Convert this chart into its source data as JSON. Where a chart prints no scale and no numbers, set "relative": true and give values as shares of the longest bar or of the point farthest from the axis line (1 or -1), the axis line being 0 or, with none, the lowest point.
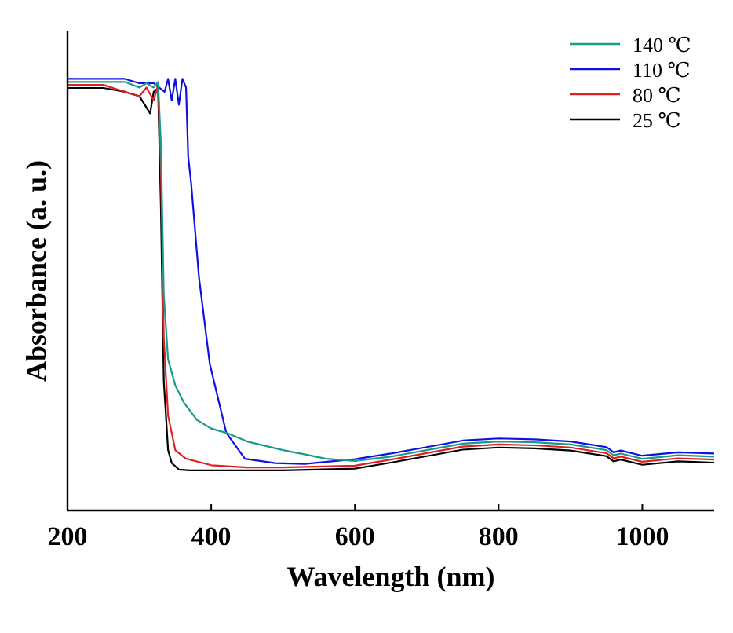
{
  "chart_data": {
    "type": "line",
    "xlabel": "Wavelength (nm)",
    "ylabel": "Absorbance (a. u.)",
    "relative": true,
    "xlim": [
      200,
      1100
    ],
    "xticks": [
      200,
      400,
      600,
      800,
      1000
    ],
    "legend": "top right",
    "line_style": "solid",
    "marker": "none",
    "grid": false,
    "series": [
      {
        "name": "140 ℃",
        "color": "#1a9a8a",
        "x": [
          200,
          250,
          280,
          300,
          310,
          320,
          326,
          330,
          334,
          340,
          350,
          362,
          380,
          400,
          421,
          450,
          500,
          531,
          560,
          600,
          650,
          700,
          750,
          800,
          850,
          900,
          950,
          960,
          970,
          1000,
          1050,
          1100
        ],
        "values": [
          0.993,
          0.993,
          0.993,
          0.98,
          0.99,
          0.98,
          0.993,
          0.85,
          0.5,
          0.35,
          0.29,
          0.25,
          0.21,
          0.19,
          0.18,
          0.16,
          0.14,
          0.13,
          0.12,
          0.115,
          0.125,
          0.14,
          0.155,
          0.16,
          0.158,
          0.153,
          0.14,
          0.128,
          0.132,
          0.12,
          0.128,
          0.125
        ]
      },
      {
        "name": "110 ℃",
        "color": "#1010e0",
        "x": [
          200,
          250,
          280,
          300,
          320,
          335,
          340,
          345,
          350,
          355,
          360,
          365,
          368,
          372,
          383,
          398,
          421,
          447,
          489,
          530,
          600,
          650,
          700,
          750,
          800,
          850,
          900,
          950,
          960,
          970,
          1000,
          1050,
          1100
        ],
        "values": [
          1,
          1,
          1,
          0.99,
          0.99,
          0.97,
          1,
          0.95,
          1,
          0.94,
          1,
          0.98,
          0.82,
          0.76,
          0.54,
          0.34,
          0.18,
          0.12,
          0.11,
          0.108,
          0.119,
          0.132,
          0.147,
          0.162,
          0.167,
          0.165,
          0.16,
          0.147,
          0.135,
          0.139,
          0.127,
          0.135,
          0.132
        ]
      },
      {
        "name": "80 ℃",
        "color": "#e02020",
        "x": [
          200,
          250,
          280,
          300,
          310,
          320,
          326,
          330,
          334,
          340,
          350,
          365,
          400,
          450,
          500,
          600,
          650,
          700,
          750,
          800,
          850,
          900,
          950,
          960,
          970,
          1000,
          1050,
          1100
        ],
        "values": [
          0.986,
          0.986,
          0.97,
          0.96,
          0.98,
          0.95,
          0.986,
          0.8,
          0.4,
          0.22,
          0.14,
          0.12,
          0.105,
          0.1,
          0.1,
          0.104,
          0.118,
          0.133,
          0.148,
          0.153,
          0.151,
          0.146,
          0.133,
          0.121,
          0.125,
          0.113,
          0.121,
          0.118
        ]
      },
      {
        "name": "25 ℃",
        "color": "#000000",
        "x": [
          200,
          250,
          280,
          300,
          315,
          320,
          326,
          330,
          334,
          340,
          345,
          355,
          370,
          400,
          450,
          500,
          600,
          650,
          700,
          750,
          800,
          850,
          900,
          950,
          960,
          970,
          1000,
          1050,
          1100
        ],
        "values": [
          0.979,
          0.979,
          0.97,
          0.96,
          0.92,
          0.97,
          0.979,
          0.7,
          0.3,
          0.14,
          0.11,
          0.095,
          0.093,
          0.093,
          0.093,
          0.093,
          0.097,
          0.111,
          0.126,
          0.141,
          0.146,
          0.144,
          0.139,
          0.126,
          0.114,
          0.118,
          0.106,
          0.114,
          0.111
        ]
      }
    ]
  }
}
